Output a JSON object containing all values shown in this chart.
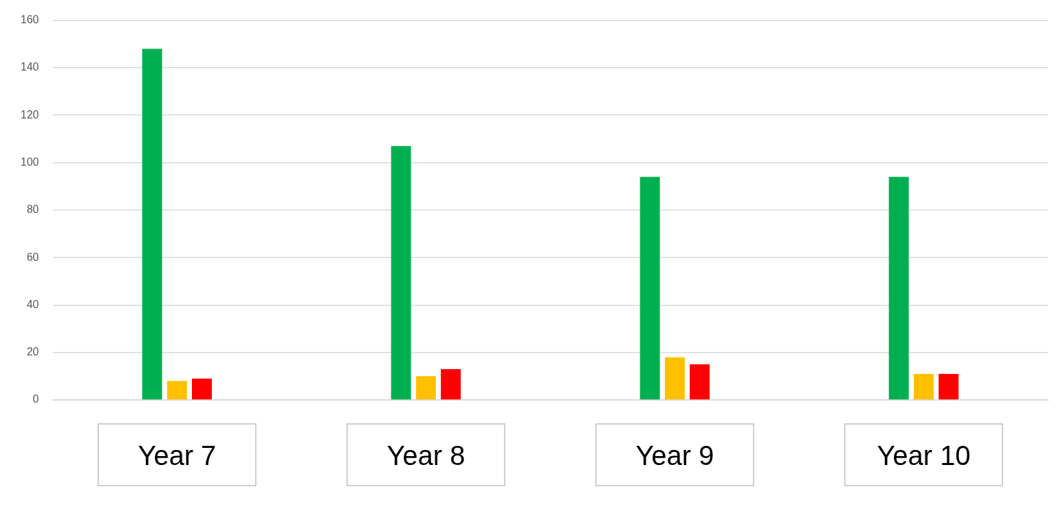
{
  "chart_data": {
    "type": "bar",
    "categories": [
      "Year 7",
      "Year 8",
      "Year 9",
      "Year 10"
    ],
    "series": [
      {
        "color": "#00b050",
        "values": [
          148,
          107,
          94,
          94
        ]
      },
      {
        "color": "#ffc000",
        "values": [
          8,
          10,
          18,
          11
        ]
      },
      {
        "color": "#ff0000",
        "values": [
          9,
          13,
          15,
          11
        ]
      }
    ],
    "ylim": [
      0,
      160
    ],
    "yticks": [
      0,
      20,
      40,
      60,
      80,
      100,
      120,
      140,
      160
    ],
    "grid": "y",
    "legend": false
  }
}
